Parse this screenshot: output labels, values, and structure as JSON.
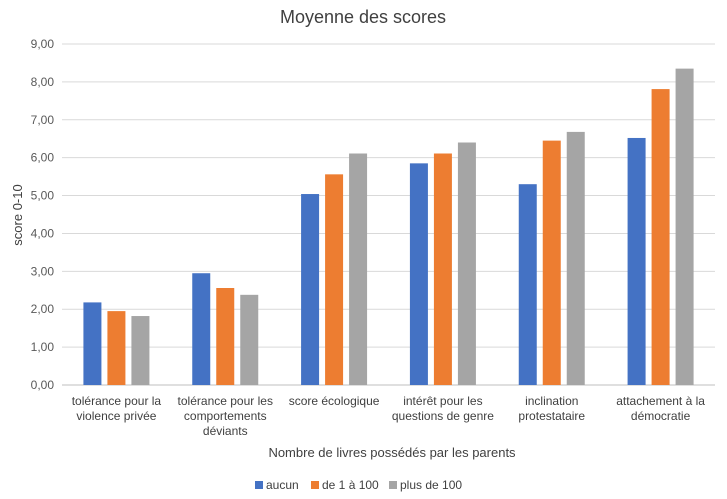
{
  "chart_data": {
    "type": "bar",
    "title": "Moyenne des scores",
    "xlabel": "Nombre de livres possédés par les parents",
    "ylabel": "score 0-10",
    "ylim": [
      0,
      9
    ],
    "yticks": [
      "0,00",
      "1,00",
      "2,00",
      "3,00",
      "4,00",
      "5,00",
      "6,00",
      "7,00",
      "8,00",
      "9,00"
    ],
    "grid": true,
    "legend_position": "bottom",
    "categories": [
      [
        "tolérance pour la",
        "violence privée"
      ],
      [
        "tolérance pour les",
        "comportements",
        "déviants"
      ],
      [
        "score écologique"
      ],
      [
        "intérêt pour les",
        "questions de genre"
      ],
      [
        "inclination",
        "protestataire"
      ],
      [
        "attachement à la",
        "démocratie"
      ]
    ],
    "series": [
      {
        "name": "aucun",
        "color": "#4472c4",
        "values": [
          2.18,
          2.95,
          5.04,
          5.85,
          5.3,
          6.52
        ]
      },
      {
        "name": "de 1 à 100",
        "color": "#ed7d31",
        "values": [
          1.95,
          2.56,
          5.56,
          6.11,
          6.45,
          7.81
        ]
      },
      {
        "name": "plus de 100",
        "color": "#a5a5a5",
        "values": [
          1.82,
          2.38,
          6.11,
          6.4,
          6.68,
          8.35
        ]
      }
    ]
  }
}
